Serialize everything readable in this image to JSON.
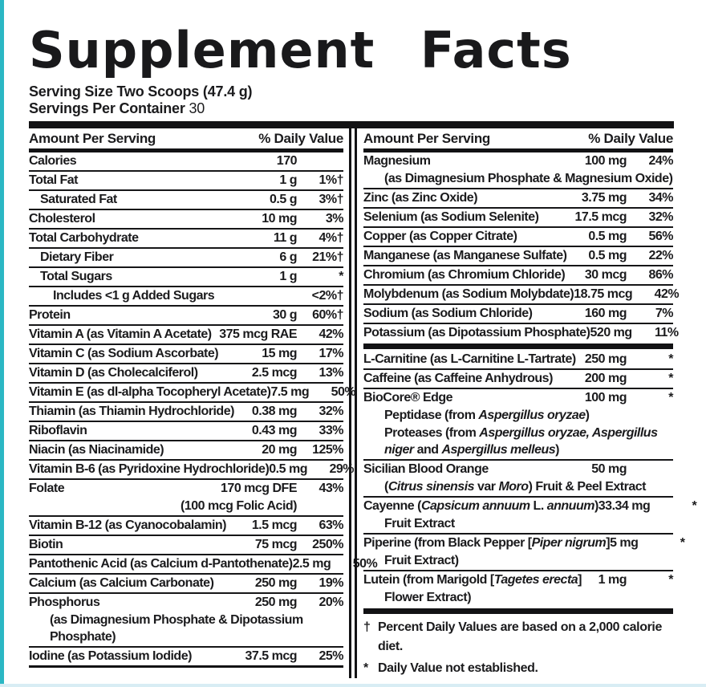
{
  "colors": {
    "accent_strip": "#2bb7c4",
    "bottom_strip": "#d8edf4",
    "ink": "#1b1b1d"
  },
  "title": "Supplement Facts",
  "serving": {
    "size_line": "Serving Size Two Scoops (47.4 g)",
    "container_label": "Servings Per Container",
    "container_value": "30"
  },
  "col_header": {
    "amount": "Amount Per Serving",
    "dv": "% Daily Value"
  },
  "left_column": {
    "items": [
      {
        "name": "Calories",
        "amount": "170",
        "dv": ""
      },
      {
        "name": "Total Fat",
        "amount": "1 g",
        "dv": "1%†"
      },
      {
        "name": "Saturated Fat",
        "indent": 1,
        "amount": "0.5 g",
        "dv": "3%†"
      },
      {
        "name": "Cholesterol",
        "amount": "10 mg",
        "dv": "3%"
      },
      {
        "name": "Total Carbohydrate",
        "amount": "11 g",
        "dv": "4%†"
      },
      {
        "name": "Dietary Fiber",
        "indent": 1,
        "amount": "6 g",
        "dv": "21%†"
      },
      {
        "name": "Total Sugars",
        "indent": 1,
        "amount": "1 g",
        "dv": "*"
      },
      {
        "name": "Includes <1 g Added Sugars",
        "indent": 2,
        "amount": "",
        "dv": "<2%†"
      },
      {
        "name": "Protein",
        "amount": "30 g",
        "dv": "60%†"
      },
      {
        "name": "Vitamin A (as Vitamin A Acetate)",
        "amount": "375 mcg RAE",
        "dv": "42%"
      },
      {
        "name": "Vitamin C (as Sodium Ascorbate)",
        "amount": "15 mg",
        "dv": "17%"
      },
      {
        "name": "Vitamin D (as Cholecalciferol)",
        "amount": "2.5 mcg",
        "dv": "13%"
      },
      {
        "name": "Vitamin E (as dl-alpha Tocopheryl Acetate)",
        "amount": "7.5 mg",
        "dv": "50%"
      },
      {
        "name": "Thiamin (as Thiamin Hydrochloride)",
        "amount": "0.38 mg",
        "dv": "32%"
      },
      {
        "name": "Riboflavin",
        "amount": "0.43 mg",
        "dv": "33%"
      },
      {
        "name": "Niacin (as Niacinamide)",
        "amount": "20 mg",
        "dv": "125%"
      },
      {
        "name": "Vitamin B-6 (as Pyridoxine Hydrochloride)",
        "amount": "0.5 mg",
        "dv": "29%"
      },
      {
        "name": "Folate",
        "amount": "170 mcg DFE",
        "dv": "43%",
        "subs": [
          {
            "text": "(100 mcg Folic Acid)",
            "align": "right"
          }
        ]
      },
      {
        "name": "Vitamin B-12 (as Cyanocobalamin)",
        "amount": "1.5 mcg",
        "dv": "63%"
      },
      {
        "name": "Biotin",
        "amount": "75 mcg",
        "dv": "250%"
      },
      {
        "name": "Pantothenic Acid (as Calcium d-Pantothenate)",
        "amount": "2.5 mg",
        "dv": "50%"
      },
      {
        "name": "Calcium (as Calcium Carbonate)",
        "amount": "250 mg",
        "dv": "19%"
      },
      {
        "name": "Phosphorus",
        "amount": "250 mg",
        "dv": "20%",
        "subs": [
          {
            "text": "(as Dimagnesium Phosphate & Dipotassium Phosphate)"
          }
        ]
      },
      {
        "name": "Iodine (as Potassium Iodide)",
        "amount": "37.5 mcg",
        "dv": "25%"
      },
      {
        "end_bar": true
      }
    ]
  },
  "right_column": {
    "items": [
      {
        "name": "Magnesium",
        "amount": "100 mg",
        "dv": "24%",
        "subs": [
          {
            "text": "(as Dimagnesium Phosphate & Magnesium Oxide)"
          }
        ]
      },
      {
        "name": "Zinc (as Zinc Oxide)",
        "amount": "3.75 mg",
        "dv": "34%"
      },
      {
        "name": "Selenium (as Sodium Selenite)",
        "amount": "17.5 mcg",
        "dv": "32%"
      },
      {
        "name": "Copper (as Copper Citrate)",
        "amount": "0.5 mg",
        "dv": "56%"
      },
      {
        "name": "Manganese (as Manganese Sulfate)",
        "amount": "0.5 mg",
        "dv": "22%"
      },
      {
        "name": "Chromium (as Chromium Chloride)",
        "amount": "30 mcg",
        "dv": "86%"
      },
      {
        "name": "Molybdenum (as Sodium Molybdate)",
        "amount": "18.75 mcg",
        "dv": "42%"
      },
      {
        "name": "Sodium (as Sodium Chloride)",
        "amount": "160 mg",
        "dv": "7%"
      },
      {
        "name": "Potassium (as Dipotassium Phosphate)",
        "amount": "520 mg",
        "dv": "11%"
      },
      {
        "bar": true
      },
      {
        "name": "L-Carnitine (as L-Carnitine L-Tartrate)",
        "amount": "250 mg",
        "dv": "*"
      },
      {
        "name": "Caffeine (as Caffeine Anhydrous)",
        "amount": "200 mg",
        "dv": "*"
      },
      {
        "name": "BioCore® Edge",
        "amount": "100 mg",
        "dv": "*",
        "subs": [
          {
            "segments": [
              {
                "t": "Peptidase (from "
              },
              {
                "t": "Aspergillus oryzae",
                "i": true
              },
              {
                "t": ")"
              }
            ]
          },
          {
            "segments": [
              {
                "t": "Proteases (from "
              },
              {
                "t": "Aspergillus oryzae, Aspergillus niger",
                "i": true
              },
              {
                "t": " and "
              },
              {
                "t": "Aspergillus melleus",
                "i": true
              },
              {
                "t": ")"
              }
            ]
          }
        ]
      },
      {
        "name": "Sicilian Blood Orange",
        "amount": "50 mg",
        "dv": "",
        "subs": [
          {
            "segments": [
              {
                "t": "("
              },
              {
                "t": "Citrus sinensis",
                "i": true
              },
              {
                "t": " var "
              },
              {
                "t": "Moro",
                "i": true
              },
              {
                "t": ") Fruit & Peel Extract"
              }
            ]
          }
        ]
      },
      {
        "name_segments": [
          {
            "t": "Cayenne ("
          },
          {
            "t": "Capsicum annuum",
            "i": true
          },
          {
            "t": " L. "
          },
          {
            "t": "annuum",
            "i": true
          },
          {
            "t": ")"
          }
        ],
        "amount": "33.34 mg",
        "dv": "*",
        "subs": [
          {
            "text": "Fruit Extract"
          }
        ]
      },
      {
        "name_segments": [
          {
            "t": "Piperine (from Black Pepper ["
          },
          {
            "t": "Piper nigrum",
            "i": true
          },
          {
            "t": "]"
          }
        ],
        "amount": "5 mg",
        "dv": "*",
        "subs": [
          {
            "text": "Fruit Extract)"
          }
        ]
      },
      {
        "name_segments": [
          {
            "t": "Lutein (from Marigold ["
          },
          {
            "t": "Tagetes erecta",
            "i": true
          },
          {
            "t": "]"
          }
        ],
        "amount": "1 mg",
        "dv": "*",
        "subs": [
          {
            "text": "Flower Extract)"
          }
        ]
      },
      {
        "bar": true
      },
      {
        "fnote_sym": "†",
        "fnote_text": "Percent Daily Values are based on a 2,000 calorie diet."
      },
      {
        "fnote_sym": "*",
        "fnote_text": "Daily Value not established."
      }
    ]
  }
}
